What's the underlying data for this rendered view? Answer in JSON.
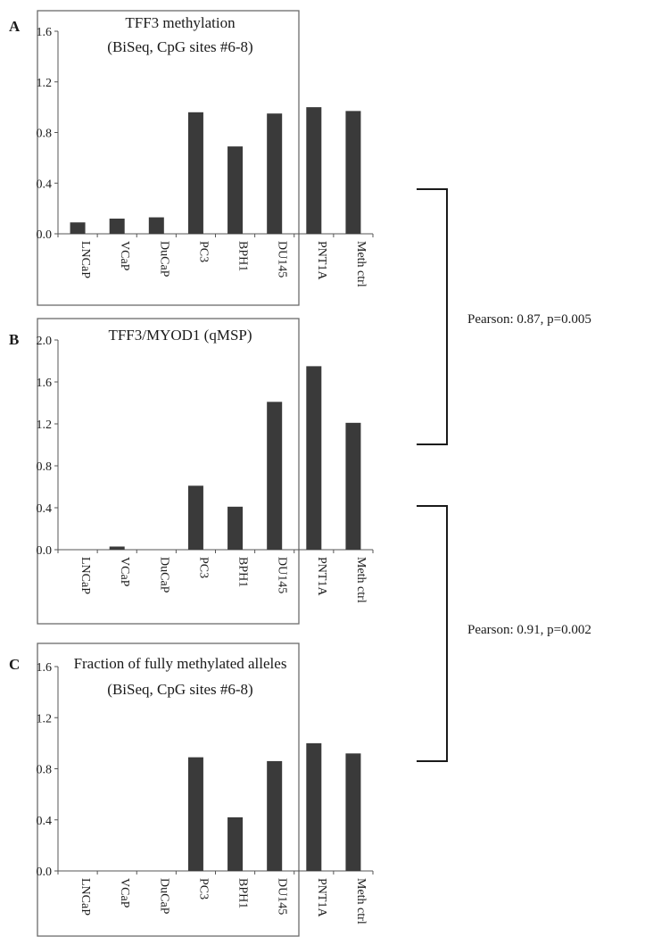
{
  "chart_data": [
    {
      "type": "bar",
      "panel_label": "A",
      "title": "TFF3 methylation",
      "subtitle": "(BiSeq, CpG sites #6-8)",
      "categories": [
        "LNCaP",
        "VCaP",
        "DuCaP",
        "PC3",
        "BPH1",
        "DU145",
        "PNT1A",
        "Meth ctrl"
      ],
      "values": [
        0.09,
        0.12,
        0.13,
        0.96,
        0.69,
        0.95,
        1.0,
        0.97
      ],
      "yticks": [
        "0.0",
        "0.4",
        "0.8",
        "1.2",
        "1.6"
      ],
      "ylim": [
        0,
        1.6
      ],
      "bar_color": "#3a3a3a",
      "grid": false
    },
    {
      "type": "bar",
      "panel_label": "B",
      "title": "TFF3/MYOD1 (qMSP)",
      "subtitle": "",
      "categories": [
        "LNCaP",
        "VCaP",
        "DuCaP",
        "PC3",
        "BPH1",
        "DU145",
        "PNT1A",
        "Meth ctrl"
      ],
      "values": [
        0.0,
        0.03,
        0.0,
        0.61,
        0.41,
        1.41,
        1.75,
        1.21
      ],
      "yticks": [
        "0.0",
        "0.4",
        "0.8",
        "1.2",
        "1.6",
        "2.0"
      ],
      "ylim": [
        0,
        2.0
      ],
      "bar_color": "#3a3a3a",
      "grid": false
    },
    {
      "type": "bar",
      "panel_label": "C",
      "title": "Fraction of fully methylated alleles",
      "subtitle": "(BiSeq, CpG sites #6-8)",
      "categories": [
        "LNCaP",
        "VCaP",
        "DuCaP",
        "PC3",
        "BPH1",
        "DU145",
        "PNT1A",
        "Meth ctrl"
      ],
      "values": [
        0.0,
        0.0,
        0.0,
        0.89,
        0.42,
        0.86,
        1.0,
        0.92
      ],
      "yticks": [
        "0.0",
        "0.4",
        "0.8",
        "1.2",
        "1.6"
      ],
      "ylim": [
        0,
        1.6
      ],
      "bar_color": "#3a3a3a",
      "grid": false
    }
  ],
  "correlations": [
    {
      "text": "Pearson: 0.87, p=0.005",
      "between": [
        "A",
        "B"
      ]
    },
    {
      "text": "Pearson: 0.91, p=0.002",
      "between": [
        "B",
        "C"
      ]
    }
  ]
}
